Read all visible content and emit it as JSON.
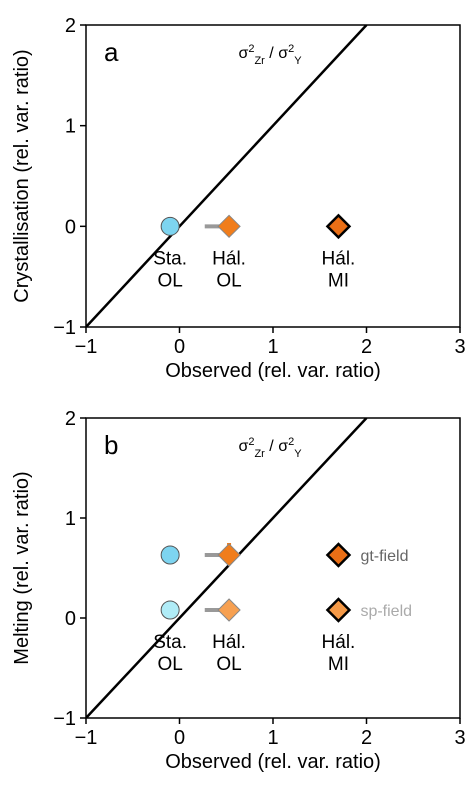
{
  "chart_data": [
    {
      "type": "scatter",
      "panel_label": "a",
      "annotation": {
        "base1": "σ",
        "sup1": "2",
        "sub1": "Zr",
        "sep": " / ",
        "base2": "σ",
        "sup2": "2",
        "sub2": "Y"
      },
      "x_label": "Observed (rel. var. ratio)",
      "y_label": "Crystallisation (rel. var. ratio)",
      "xlim": [
        -1,
        3
      ],
      "ylim": [
        -1,
        2
      ],
      "xticks": [
        {
          "value": -1,
          "label": "−1"
        },
        0,
        1,
        2,
        3
      ],
      "yticks": [
        {
          "value": -1,
          "label": "−1"
        },
        0,
        1,
        2
      ],
      "line_x": [
        -1,
        2
      ],
      "line_y": [
        -1,
        2
      ],
      "point_labels": [
        [
          "Sta.",
          "OL"
        ],
        [
          "Hál.",
          "OL"
        ],
        [
          "Hál.",
          "MI"
        ]
      ],
      "series": [
        {
          "x": [
            -0.1,
            0.53,
            1.7
          ],
          "y": [
            0,
            0,
            0
          ],
          "markers": [
            "circle",
            "diamond",
            "diamond"
          ],
          "colors": [
            "#7dd4f0",
            "#f07d1c",
            "#ea6f16"
          ],
          "edgecolors": [
            "#555555",
            "#888888",
            "#000000"
          ],
          "edgewidths": [
            1,
            1,
            2.5
          ],
          "x_err": [
            null,
            [
              0.27,
              0.62
            ],
            null
          ]
        }
      ]
    },
    {
      "type": "scatter",
      "panel_label": "b",
      "annotation": {
        "base1": "σ",
        "sup1": "2",
        "sub1": "Zr",
        "sep": " / ",
        "base2": "σ",
        "sup2": "2",
        "sub2": "Y"
      },
      "x_label": "Observed (rel. var. ratio)",
      "y_label": "Melting (rel. var. ratio)",
      "xlim": [
        -1,
        3
      ],
      "ylim": [
        -1,
        2
      ],
      "xticks": [
        {
          "value": -1,
          "label": "−1"
        },
        0,
        1,
        2,
        3
      ],
      "yticks": [
        {
          "value": -1,
          "label": "−1"
        },
        0,
        1,
        2
      ],
      "line_x": [
        -1,
        2
      ],
      "line_y": [
        -1,
        2
      ],
      "point_labels": [
        [
          "Sta.",
          "OL"
        ],
        [
          "Hál.",
          "OL"
        ],
        [
          "Hál.",
          "MI"
        ]
      ],
      "legend": "right",
      "series": [
        {
          "name": "gt-field",
          "legend_text_color": "#666666",
          "x": [
            -0.1,
            0.53,
            1.7
          ],
          "y": [
            0.63,
            0.63,
            0.63
          ],
          "markers": [
            "circle",
            "diamond",
            "diamond"
          ],
          "colors": [
            "#7dd4f0",
            "#f07d1c",
            "#ea6f16"
          ],
          "edgecolors": [
            "#555555",
            "#888888",
            "#000000"
          ],
          "edgewidths": [
            1,
            1,
            2.5
          ],
          "x_err": [
            null,
            [
              0.27,
              0.62
            ],
            null
          ],
          "y_err": [
            [
              0.6,
              0.72
            ],
            [
              0.6,
              0.75
            ],
            [
              0.6,
              0.72
            ]
          ]
        },
        {
          "name": "sp-field",
          "legend_text_color": "#aaaaaa",
          "x": [
            -0.1,
            0.53,
            1.7
          ],
          "y": [
            0.08,
            0.08,
            0.08
          ],
          "markers": [
            "circle",
            "diamond",
            "diamond"
          ],
          "colors": [
            "#b0ecf7",
            "#f7a050",
            "#f59a48"
          ],
          "edgecolors": [
            "#555555",
            "#888888",
            "#000000"
          ],
          "edgewidths": [
            1,
            1,
            2.5
          ],
          "x_err": [
            null,
            [
              0.27,
              0.62
            ],
            null
          ]
        }
      ]
    }
  ]
}
